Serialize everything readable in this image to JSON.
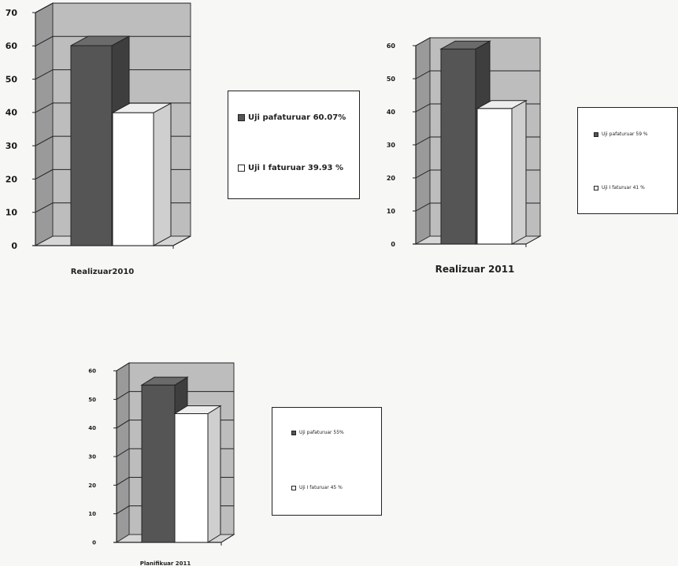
{
  "chart_data": [
    {
      "type": "bar",
      "categories": [
        "Realizuar2010"
      ],
      "series": [
        {
          "name": "Uji pafaturuar  60.07%",
          "values": [
            60.07
          ]
        },
        {
          "name": "Uji I faturuar  39.93 %",
          "values": [
            39.93
          ]
        }
      ],
      "xlabel": "Realizuar2010",
      "ylim": [
        0,
        70
      ],
      "yticks": [
        "0",
        "10",
        "20",
        "30",
        "40",
        "50",
        "60",
        "70"
      ],
      "legend": "right",
      "grid": true,
      "colors": {
        "dark": "#555555",
        "light": "#ffffff"
      }
    },
    {
      "type": "bar",
      "categories": [
        "Realizuar 2011"
      ],
      "series": [
        {
          "name": "Uji pafaturuar 59 %",
          "values": [
            59
          ]
        },
        {
          "name": "Uji I faturuar 41 %",
          "values": [
            41
          ]
        }
      ],
      "xlabel": "Realizuar 2011",
      "ylim": [
        0,
        60
      ],
      "yticks": [
        "0",
        "10",
        "20",
        "30",
        "40",
        "50",
        "60"
      ],
      "legend": "right",
      "grid": true,
      "colors": {
        "dark": "#555555",
        "light": "#ffffff"
      }
    },
    {
      "type": "bar",
      "categories": [
        "Planifikuar 2011"
      ],
      "series": [
        {
          "name": "Uji pafaturuar 55%",
          "values": [
            55
          ]
        },
        {
          "name": "Uji I faturuar 45 %",
          "values": [
            45
          ]
        }
      ],
      "xlabel": "Planifikuar 2011",
      "ylim": [
        0,
        60
      ],
      "yticks": [
        "0",
        "10",
        "20",
        "30",
        "40",
        "50",
        "60"
      ],
      "legend": "right",
      "grid": true,
      "colors": {
        "dark": "#555555",
        "light": "#ffffff"
      }
    }
  ]
}
